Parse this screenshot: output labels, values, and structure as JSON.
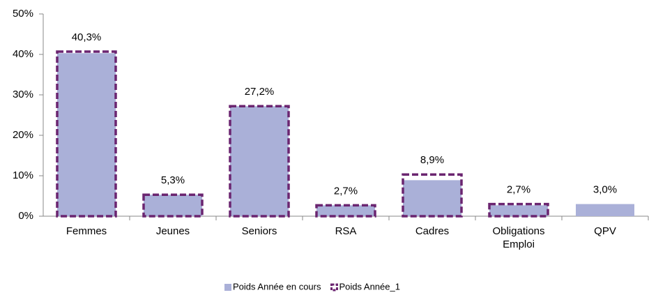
{
  "chart_data": {
    "type": "bar",
    "categories": [
      "Femmes",
      "Jeunes",
      "Seniors",
      "RSA",
      "Cadres",
      "Obligations Emploi",
      "QPV"
    ],
    "series": [
      {
        "name": "Poids Année en cours",
        "color": "#aab0d8",
        "values": [
          40.3,
          5.3,
          27.2,
          2.7,
          8.9,
          2.7,
          3.0
        ],
        "value_labels": [
          "40,3%",
          "5,3%",
          "27,2%",
          "2,7%",
          "8,9%",
          "2,7%",
          "3,0%"
        ]
      },
      {
        "name": "Poids Année_1",
        "color": "#6b2570",
        "values": [
          40.7,
          5.3,
          27.2,
          2.7,
          10.3,
          3.0,
          null
        ]
      }
    ],
    "ylim": [
      0,
      50
    ],
    "yticks": [
      {
        "value": 0,
        "label": "0%"
      },
      {
        "value": 10,
        "label": "10%"
      },
      {
        "value": 20,
        "label": "20%"
      },
      {
        "value": 30,
        "label": "30%"
      },
      {
        "value": 40,
        "label": "40%"
      },
      {
        "value": 50,
        "label": "50%"
      }
    ],
    "legend": "bottom"
  }
}
